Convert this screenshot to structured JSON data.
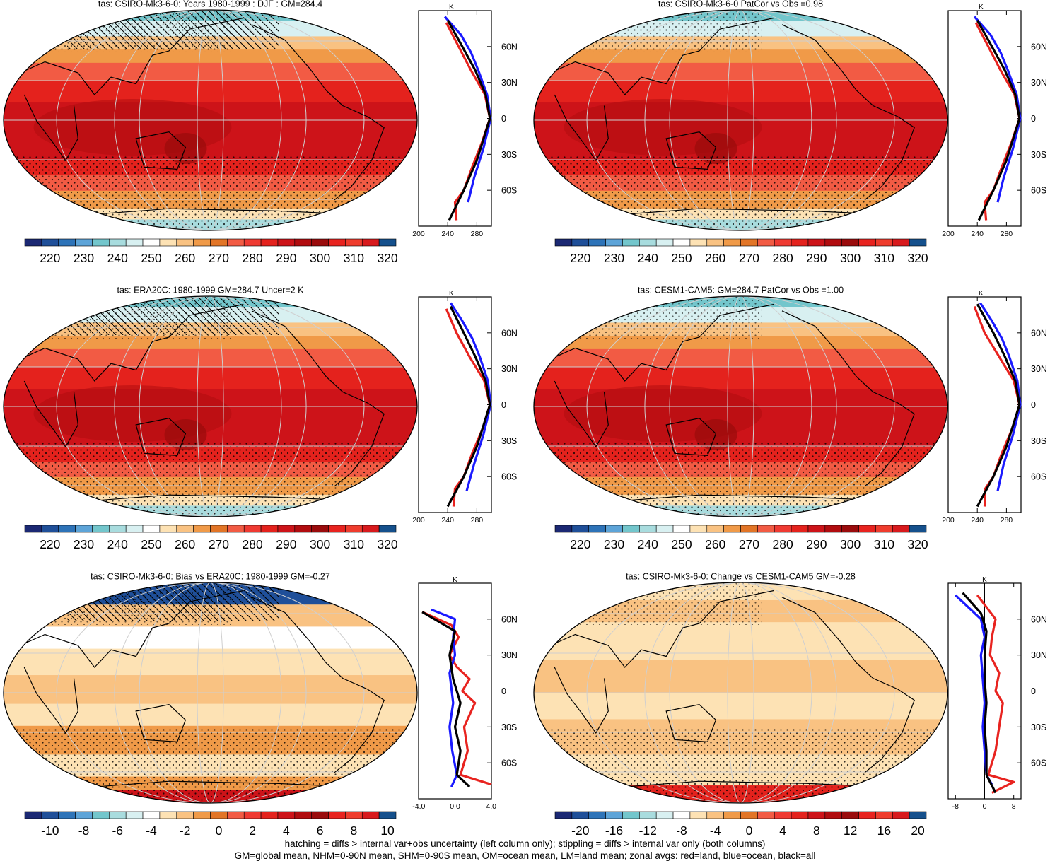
{
  "colors": {
    "abs_palette": [
      "#1b2873",
      "#1f4f99",
      "#2d73b8",
      "#5da4d8",
      "#73c6cc",
      "#a8dcde",
      "#d8f0f1",
      "#ffffff",
      "#fde2b4",
      "#f9c282",
      "#f09a48",
      "#e27527",
      "#f25b44",
      "#ef3a32",
      "#e4221d",
      "#cd1319",
      "#b10c0f",
      "#9a0b0c",
      "#e8231f",
      "#ef3c2d",
      "#d81a1d",
      "#15508c"
    ],
    "diff_palette": [
      "#1b2873",
      "#1f4f99",
      "#2d73b8",
      "#5da4d8",
      "#73c6cc",
      "#a8dcde",
      "#d8f0f1",
      "#ffffff",
      "#fde2b4",
      "#f9c282",
      "#f09a48",
      "#e27527",
      "#f25b44",
      "#ef3a32",
      "#e4221d",
      "#cd1319",
      "#b10c0f",
      "#9a0b0c",
      "#e8231f",
      "#ef3c2d",
      "#d81a1d",
      "#15508c"
    ],
    "land": "#e8231f",
    "ocean": "#1a1aff",
    "all": "#000000"
  },
  "panels": [
    {
      "title": "tas: CSIRO-Mk3-6-0: Years 1980-1999 : DJF : GM=284.4",
      "colorbar_labels": [
        "220",
        "230",
        "240",
        "250",
        "260",
        "270",
        "280",
        "290",
        "300",
        "310",
        "320"
      ]
    },
    {
      "title": "tas: CSIRO-Mk3-6-0 PatCor vs Obs =0.98",
      "colorbar_labels": [
        "220",
        "230",
        "240",
        "250",
        "260",
        "270",
        "280",
        "290",
        "300",
        "310",
        "320"
      ]
    },
    {
      "title": "tas: ERA20C: 1980-1999 GM=284.7 Uncer=2 K",
      "colorbar_labels": [
        "220",
        "230",
        "240",
        "250",
        "260",
        "270",
        "280",
        "290",
        "300",
        "310",
        "320"
      ]
    },
    {
      "title": "tas: CESM1-CAM5: GM=284.7 PatCor vs Obs =1.00",
      "colorbar_labels": [
        "220",
        "230",
        "240",
        "250",
        "260",
        "270",
        "280",
        "290",
        "300",
        "310",
        "320"
      ]
    },
    {
      "title": "tas: CSIRO-Mk3-6-0: Bias vs ERA20C: 1980-1999 GM=-0.27",
      "colorbar_labels": [
        "-10",
        "-8",
        "-6",
        "-4",
        "-2",
        "0",
        "2",
        "4",
        "6",
        "8",
        "10"
      ]
    },
    {
      "title": "tas: CSIRO-Mk3-6-0: Change vs CESM1-CAM5 GM=-0.28",
      "colorbar_labels": [
        "-20",
        "-16",
        "-12",
        "-8",
        "-4",
        "0",
        "4",
        "8",
        "12",
        "16",
        "20"
      ]
    }
  ],
  "profile_axis": {
    "unit_label": "K",
    "lat_labels": [
      "60N",
      "30N",
      "0",
      "30S",
      "60S"
    ],
    "abs_xticks": [
      "200",
      "240",
      "280"
    ],
    "bias_xticks": [
      "-4.0",
      "0.0",
      "4.0"
    ],
    "change_xticks": [
      "-8",
      "0",
      "8"
    ]
  },
  "chart_data": [
    {
      "type": "line",
      "ylabel": "latitude",
      "xlabel": "K",
      "xlim": [
        200,
        300
      ],
      "ylim": [
        -90,
        90
      ],
      "series": [
        {
          "color": "land",
          "values": [
            [
              252,
              -85
            ],
            [
              250,
              -70
            ],
            [
              262,
              -60
            ],
            [
              274,
              -40
            ],
            [
              287,
              -20
            ],
            [
              298,
              0
            ],
            [
              291,
              20
            ],
            [
              272,
              40
            ],
            [
              255,
              60
            ],
            [
              238,
              80
            ]
          ]
        },
        {
          "color": "ocean",
          "values": [
            [
              268,
              -70
            ],
            [
              276,
              -50
            ],
            [
              289,
              -25
            ],
            [
              299,
              0
            ],
            [
              294,
              20
            ],
            [
              282,
              40
            ],
            [
              272,
              55
            ],
            [
              258,
              70
            ],
            [
              236,
              85
            ]
          ]
        },
        {
          "color": "all",
          "values": [
            [
              242,
              -85
            ],
            [
              262,
              -60
            ],
            [
              280,
              -35
            ],
            [
              298,
              0
            ],
            [
              292,
              20
            ],
            [
              278,
              40
            ],
            [
              260,
              60
            ],
            [
              240,
              82
            ]
          ]
        }
      ]
    },
    {
      "type": "line",
      "ylabel": "latitude",
      "xlabel": "K",
      "xlim": [
        200,
        300
      ],
      "ylim": [
        -90,
        90
      ],
      "series": [
        {
          "color": "land",
          "values": [
            [
              252,
              -85
            ],
            [
              250,
              -70
            ],
            [
              262,
              -60
            ],
            [
              274,
              -40
            ],
            [
              287,
              -20
            ],
            [
              298,
              0
            ],
            [
              291,
              20
            ],
            [
              272,
              40
            ],
            [
              255,
              60
            ],
            [
              238,
              80
            ]
          ]
        },
        {
          "color": "ocean",
          "values": [
            [
              268,
              -70
            ],
            [
              276,
              -50
            ],
            [
              289,
              -25
            ],
            [
              299,
              0
            ],
            [
              294,
              20
            ],
            [
              282,
              40
            ],
            [
              272,
              55
            ],
            [
              258,
              70
            ],
            [
              236,
              85
            ]
          ]
        },
        {
          "color": "all",
          "values": [
            [
              242,
              -85
            ],
            [
              262,
              -60
            ],
            [
              280,
              -35
            ],
            [
              298,
              0
            ],
            [
              292,
              20
            ],
            [
              278,
              40
            ],
            [
              260,
              60
            ],
            [
              240,
              82
            ]
          ]
        }
      ]
    },
    {
      "type": "line",
      "ylabel": "latitude",
      "xlabel": "K",
      "xlim": [
        200,
        300
      ],
      "ylim": [
        -90,
        90
      ],
      "series": [
        {
          "color": "land",
          "values": [
            [
              248,
              -85
            ],
            [
              250,
              -70
            ],
            [
              262,
              -60
            ],
            [
              274,
              -40
            ],
            [
              288,
              -20
            ],
            [
              298,
              0
            ],
            [
              290,
              20
            ],
            [
              270,
              40
            ],
            [
              252,
              60
            ],
            [
              238,
              80
            ]
          ]
        },
        {
          "color": "ocean",
          "values": [
            [
              266,
              -72
            ],
            [
              276,
              -50
            ],
            [
              289,
              -25
            ],
            [
              299,
              0
            ],
            [
              295,
              20
            ],
            [
              284,
              40
            ],
            [
              274,
              55
            ],
            [
              260,
              70
            ],
            [
              244,
              85
            ]
          ]
        },
        {
          "color": "all",
          "values": [
            [
              240,
              -85
            ],
            [
              262,
              -60
            ],
            [
              280,
              -35
            ],
            [
              298,
              0
            ],
            [
              292,
              20
            ],
            [
              278,
              40
            ],
            [
              262,
              60
            ],
            [
              244,
              82
            ]
          ]
        }
      ]
    },
    {
      "type": "line",
      "ylabel": "latitude",
      "xlabel": "K",
      "xlim": [
        200,
        300
      ],
      "ylim": [
        -90,
        90
      ],
      "series": [
        {
          "color": "land",
          "values": [
            [
              250,
              -85
            ],
            [
              251,
              -70
            ],
            [
              262,
              -60
            ],
            [
              274,
              -40
            ],
            [
              288,
              -20
            ],
            [
              298,
              0
            ],
            [
              290,
              20
            ],
            [
              270,
              40
            ],
            [
              250,
              60
            ],
            [
              236,
              82
            ]
          ]
        },
        {
          "color": "ocean",
          "values": [
            [
              268,
              -72
            ],
            [
              276,
              -50
            ],
            [
              289,
              -25
            ],
            [
              299,
              0
            ],
            [
              295,
              20
            ],
            [
              284,
              40
            ],
            [
              274,
              55
            ],
            [
              260,
              70
            ],
            [
              244,
              85
            ]
          ]
        },
        {
          "color": "all",
          "values": [
            [
              240,
              -85
            ],
            [
              262,
              -60
            ],
            [
              280,
              -35
            ],
            [
              298,
              0
            ],
            [
              292,
              20
            ],
            [
              278,
              40
            ],
            [
              262,
              60
            ],
            [
              240,
              84
            ]
          ]
        }
      ]
    },
    {
      "type": "line",
      "ylabel": "latitude",
      "xlabel": "K",
      "xlim": [
        -4,
        4
      ],
      "ylim": [
        -90,
        90
      ],
      "series": [
        {
          "color": "land",
          "values": [
            [
              4.0,
              -78
            ],
            [
              0.6,
              -70
            ],
            [
              1.4,
              -50
            ],
            [
              1.0,
              -30
            ],
            [
              2.2,
              -10
            ],
            [
              0.8,
              0
            ],
            [
              1.6,
              10
            ],
            [
              0.2,
              20
            ],
            [
              -0.6,
              30
            ],
            [
              0.4,
              45
            ],
            [
              -0.4,
              55
            ],
            [
              -3.6,
              66
            ]
          ]
        },
        {
          "color": "ocean",
          "values": [
            [
              -0.4,
              -80
            ],
            [
              0.2,
              -70
            ],
            [
              -0.3,
              -50
            ],
            [
              -0.6,
              -30
            ],
            [
              -0.2,
              -10
            ],
            [
              -0.6,
              15
            ],
            [
              0.0,
              30
            ],
            [
              -0.2,
              45
            ],
            [
              0.0,
              60
            ],
            [
              -2.6,
              68
            ]
          ]
        },
        {
          "color": "all",
          "values": [
            [
              1.6,
              -80
            ],
            [
              0.2,
              -70
            ],
            [
              0.6,
              -50
            ],
            [
              0.0,
              -30
            ],
            [
              0.6,
              -10
            ],
            [
              -0.2,
              10
            ],
            [
              -0.6,
              30
            ],
            [
              0.0,
              50
            ],
            [
              -3.6,
              66
            ]
          ]
        }
      ]
    },
    {
      "type": "line",
      "ylabel": "latitude",
      "xlabel": "K",
      "xlim": [
        -10,
        10
      ],
      "ylim": [
        -90,
        90
      ],
      "series": [
        {
          "color": "land",
          "values": [
            [
              2.0,
              -85
            ],
            [
              8.0,
              -76
            ],
            [
              1.0,
              -70
            ],
            [
              3.0,
              -50
            ],
            [
              4.0,
              -30
            ],
            [
              5.0,
              -10
            ],
            [
              3.0,
              0
            ],
            [
              4.0,
              15
            ],
            [
              1.5,
              30
            ],
            [
              2.0,
              45
            ],
            [
              3.0,
              60
            ],
            [
              -2.0,
              80
            ]
          ]
        },
        {
          "color": "ocean",
          "values": [
            [
              2.0,
              -78
            ],
            [
              0.5,
              -70
            ],
            [
              0.0,
              -50
            ],
            [
              -0.5,
              -30
            ],
            [
              0.0,
              -10
            ],
            [
              -0.5,
              10
            ],
            [
              -1.0,
              30
            ],
            [
              0.0,
              45
            ],
            [
              -1.0,
              60
            ],
            [
              -8.0,
              80
            ]
          ]
        },
        {
          "color": "all",
          "values": [
            [
              3.0,
              -85
            ],
            [
              0.5,
              -70
            ],
            [
              0.5,
              -50
            ],
            [
              0.0,
              -30
            ],
            [
              0.5,
              -10
            ],
            [
              0.0,
              10
            ],
            [
              0.0,
              30
            ],
            [
              0.5,
              50
            ],
            [
              -1.0,
              65
            ],
            [
              -6.0,
              82
            ]
          ]
        }
      ]
    }
  ],
  "footer": {
    "line1": "hatching = diffs > internal var+obs uncertainty (left column only); stippling = diffs > internal var only (both columns)",
    "line2": "GM=global mean, NHM=0-90N mean, SHM=0-90S mean, OM=ocean mean, LM=land mean; zonal avgs: red=land, blue=ocean, black=all"
  }
}
